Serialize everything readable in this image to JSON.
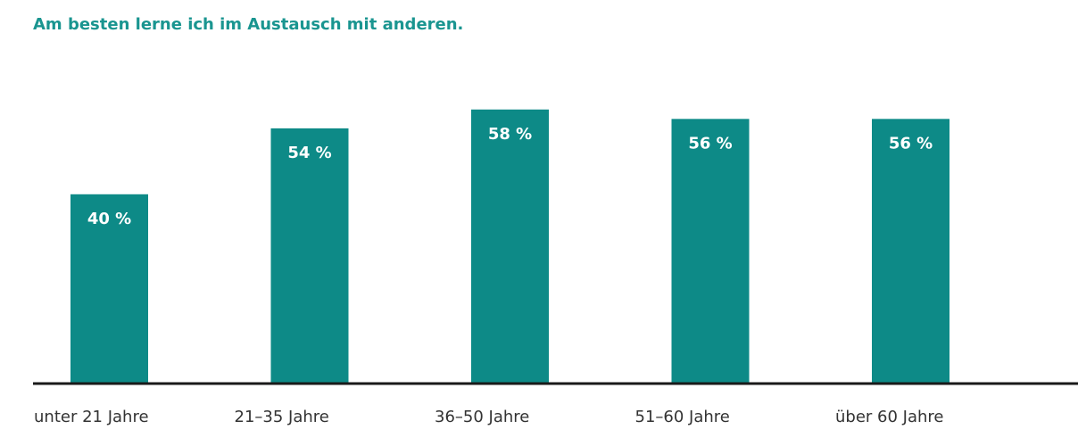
{
  "chart_data": {
    "type": "bar",
    "title": "Am besten lerne ich im Austausch mit anderen.",
    "categories": [
      "unter 21 Jahre",
      "21–35 Jahre",
      "36–50 Jahre",
      "51–60 Jahre",
      "über 60 Jahre"
    ],
    "values": [
      40,
      54,
      58,
      56,
      56
    ],
    "value_labels": [
      "40 %",
      "54 %",
      "58 %",
      "56 %",
      "56 %"
    ],
    "unit": "%",
    "ylim": [
      0,
      60
    ],
    "grid": false,
    "colors": {
      "bar": "#0d8a87",
      "title": "#1a9590",
      "label": "#ffffff",
      "axis": "#1a1a1a",
      "tick_label": "#333333"
    }
  }
}
